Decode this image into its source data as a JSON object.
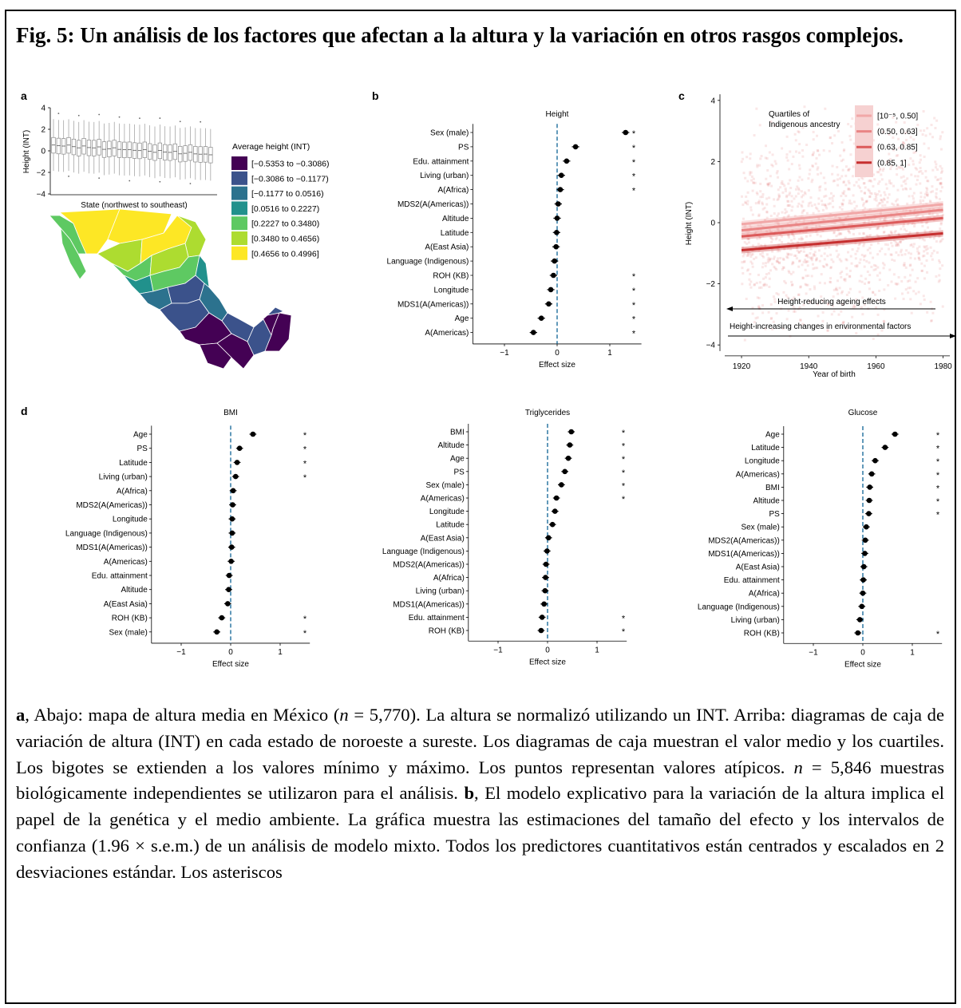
{
  "title": "Fig. 5: Un análisis de los factores que afectan a la altura y la variación en otros rasgos complejos.",
  "panels": {
    "a": {
      "letter": "a",
      "ylabel": "Height (INT)",
      "xlabel": "State (northwest to southeast)",
      "yticks": [
        "4",
        "2",
        "0",
        "−2",
        "−4"
      ],
      "legend_title": "Average height (INT)",
      "legend": [
        {
          "label": "[−0.5353 to −0.3086)",
          "color": "#440154"
        },
        {
          "label": "[−0.3086 to −0.1177)",
          "color": "#3b528b"
        },
        {
          "label": "[−0.1177 to 0.0516)",
          "color": "#2c728e"
        },
        {
          "label": "[0.0516 to 0.2227)",
          "color": "#21918c"
        },
        {
          "label": "[0.2227 to 0.3480)",
          "color": "#5ec962"
        },
        {
          "label": "[0.3480 to 0.4656)",
          "color": "#addc30"
        },
        {
          "label": "[0.4656 to 0.4996]",
          "color": "#fde725"
        }
      ]
    },
    "c": {
      "letter": "c",
      "ylabel": "Height (INT)",
      "xlabel": "Year of birth",
      "legend_title1": "Quartiles of",
      "legend_title2": "Indigenous ancestry",
      "legend": [
        {
          "label": "[10⁻⁵, 0.50]",
          "color": "#f1a8a8"
        },
        {
          "label": "(0.50, 0.63]",
          "color": "#e98585"
        },
        {
          "label": "(0.63, 0.85]",
          "color": "#dc5a5a"
        },
        {
          "label": "(0.85, 1]",
          "color": "#c62f2f"
        }
      ],
      "arrow1": "Height-reducing ageing effects",
      "arrow2": "Height-increasing changes in environmental factors",
      "xticks": [
        "1920",
        "1940",
        "1960",
        "1980"
      ],
      "yticks": [
        "4",
        "2",
        "0",
        "−2",
        "−4"
      ],
      "lines": [
        {
          "y1920": -0.05,
          "y1980": 0.6,
          "color": "#f1a8a8"
        },
        {
          "y1920": -0.25,
          "y1980": 0.42,
          "color": "#e98585"
        },
        {
          "y1920": -0.45,
          "y1980": 0.15,
          "color": "#dc5a5a"
        },
        {
          "y1920": -0.9,
          "y1980": -0.35,
          "color": "#c62f2f"
        }
      ]
    },
    "d": {
      "letter": "d"
    }
  },
  "chart_data": [
    {
      "type": "scatter",
      "panel": "b",
      "title": "Height",
      "xlabel": "Effect size",
      "xlim": [
        -1.6,
        1.6
      ],
      "xticks": [
        "−1",
        "0",
        "1"
      ],
      "categories": [
        "Sex (male)",
        "PS",
        "Edu. attainment",
        "Living (urban)",
        "A(Africa)",
        "MDS2(A(Americas))",
        "Altitude",
        "Latitude",
        "A(East Asia)",
        "Language (Indigenous)",
        "ROH (KB)",
        "Longitude",
        "MDS1(A(Americas))",
        "Age",
        "A(Americas)"
      ],
      "values": [
        1.3,
        0.35,
        0.18,
        0.08,
        0.06,
        0.02,
        0.0,
        -0.01,
        -0.02,
        -0.05,
        -0.07,
        -0.12,
        -0.16,
        -0.3,
        -0.45
      ],
      "significant": [
        "*",
        "*",
        "*",
        "*",
        "*",
        "",
        "",
        "",
        "",
        "",
        "*",
        "*",
        "*",
        "*",
        "*"
      ]
    },
    {
      "type": "scatter",
      "panel": "d",
      "title": "BMI",
      "xlabel": "Effect size",
      "xlim": [
        -1.6,
        1.6
      ],
      "xticks": [
        "−1",
        "0",
        "1"
      ],
      "categories": [
        "Age",
        "PS",
        "Latitude",
        "Living (urban)",
        "A(Africa)",
        "MDS2(A(Americas))",
        "Longitude",
        "Language (Indigenous)",
        "MDS1(A(Americas))",
        "A(Americas)",
        "Edu. attainment",
        "Altitude",
        "A(East Asia)",
        "ROH (KB)",
        "Sex (male)"
      ],
      "values": [
        0.45,
        0.18,
        0.13,
        0.1,
        0.05,
        0.04,
        0.03,
        0.03,
        0.02,
        0.01,
        -0.03,
        -0.04,
        -0.06,
        -0.18,
        -0.28
      ],
      "significant": [
        "*",
        "*",
        "*",
        "*",
        "",
        "",
        "",
        "",
        "",
        "",
        "",
        "",
        "",
        "*",
        "*"
      ]
    },
    {
      "type": "scatter",
      "panel": "d",
      "title": "Triglycerides",
      "xlabel": "Effect size",
      "xlim": [
        -1.6,
        1.6
      ],
      "xticks": [
        "−1",
        "0",
        "1"
      ],
      "categories": [
        "BMI",
        "Altitude",
        "Age",
        "PS",
        "Sex (male)",
        "A(Americas)",
        "Longitude",
        "Latitude",
        "A(East Asia)",
        "Language (Indigenous)",
        "MDS2(A(Americas))",
        "A(Africa)",
        "Living (urban)",
        "MDS1(A(Americas))",
        "Edu. attainment",
        "ROH (KB)"
      ],
      "values": [
        0.48,
        0.45,
        0.42,
        0.35,
        0.28,
        0.18,
        0.15,
        0.1,
        0.02,
        -0.01,
        -0.03,
        -0.04,
        -0.05,
        -0.07,
        -0.11,
        -0.13
      ],
      "significant": [
        "*",
        "*",
        "*",
        "*",
        "*",
        "*",
        "",
        "",
        "",
        "",
        "",
        "",
        "",
        "",
        "*",
        "*"
      ]
    },
    {
      "type": "scatter",
      "panel": "d",
      "title": "Glucose",
      "xlabel": "Effect size",
      "xlim": [
        -1.6,
        1.6
      ],
      "xticks": [
        "−1",
        "0",
        "1"
      ],
      "categories": [
        "Age",
        "Latitude",
        "Longitude",
        "A(Americas)",
        "BMI",
        "Altitude",
        "PS",
        "Sex (male)",
        "MDS2(A(Americas))",
        "MDS1(A(Americas))",
        "A(East Asia)",
        "Edu. attainment",
        "A(Africa)",
        "Language (Indigenous)",
        "Living (urban)",
        "ROH (KB)"
      ],
      "values": [
        0.65,
        0.45,
        0.25,
        0.18,
        0.14,
        0.13,
        0.12,
        0.07,
        0.05,
        0.04,
        0.02,
        0.01,
        0.0,
        -0.02,
        -0.06,
        -0.1
      ],
      "significant": [
        "*",
        "*",
        "*",
        "*",
        "*",
        "*",
        "*",
        "",
        "",
        "",
        "",
        "",
        "",
        "",
        "",
        "*"
      ]
    }
  ],
  "caption": {
    "a_letter": "a",
    "p1": ", Abajo: mapa de altura media en México (",
    "n": "n",
    "p2": " = 5,770). La altura se normalizó utilizando un INT. Arriba: diagramas de caja de variación de altura (INT) en cada estado de noroeste a sureste. Los diagramas de caja muestran el valor medio y los cuartiles. Los bigotes se extienden a los valores mínimo y máximo. Los puntos representan valores atípicos. ",
    "p3": " = 5,846 muestras biológicamente independientes se utilizaron para el análisis. ",
    "b_letter": "b",
    "p4": ", El modelo explicativo para la variación de la altura implica el papel de la genética y el medio ambiente. La gráfica muestra las estimaciones del tamaño del efecto y los intervalos de confianza (1.96 × s.e.m.) de un análisis de modelo mixto. Todos los predictores cuantitativos están centrados y escalados en 2 desviaciones estándar. Los asteriscos"
  }
}
